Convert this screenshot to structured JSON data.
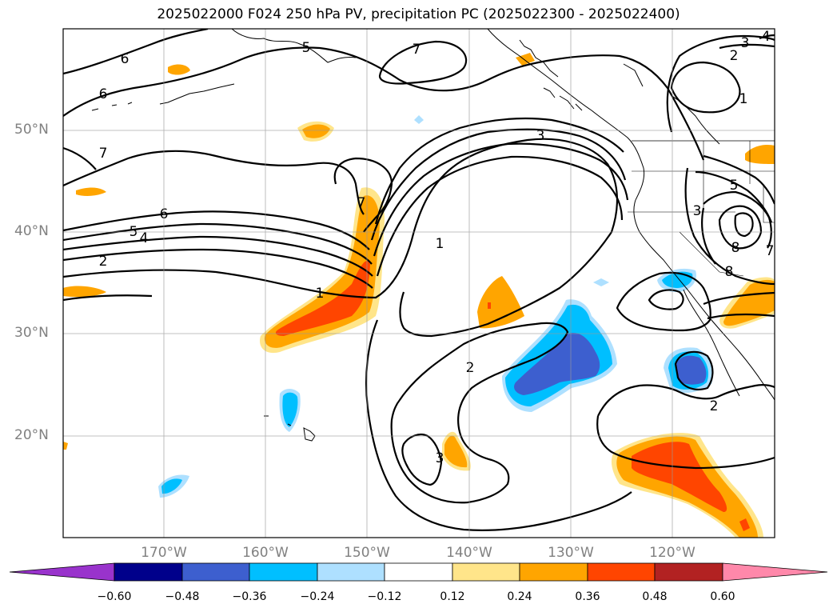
{
  "title": "2025022000 F024 250 hPa PV, precipitation PC (2025022300 - 2025022400)",
  "lat_labels": [
    "50°N",
    "40°N",
    "30°N",
    "20°N"
  ],
  "lon_labels": [
    "170°W",
    "160°W",
    "150°W",
    "140°W",
    "130°W",
    "120°W"
  ],
  "colorbar": {
    "ticks": [
      "−0.60",
      "−0.48",
      "−0.36",
      "−0.24",
      "−0.12",
      "0.12",
      "0.24",
      "0.36",
      "0.48",
      "0.60"
    ],
    "colors": [
      "#9933cc",
      "#00008b",
      "#3d5fcf",
      "#00bfff",
      "#aee0ff",
      "#ffffff",
      "#ffe58a",
      "#ffa500",
      "#ff4500",
      "#b22222",
      "#ff88aa"
    ]
  },
  "contour_labels": [
    "6",
    "6",
    "7",
    "6",
    "5",
    "4",
    "2",
    "1",
    "7",
    "5",
    "7",
    "2",
    "1",
    "3",
    "1",
    "2",
    "3",
    "5",
    "3",
    "8",
    "7",
    "8",
    "2",
    "3",
    "4"
  ]
}
